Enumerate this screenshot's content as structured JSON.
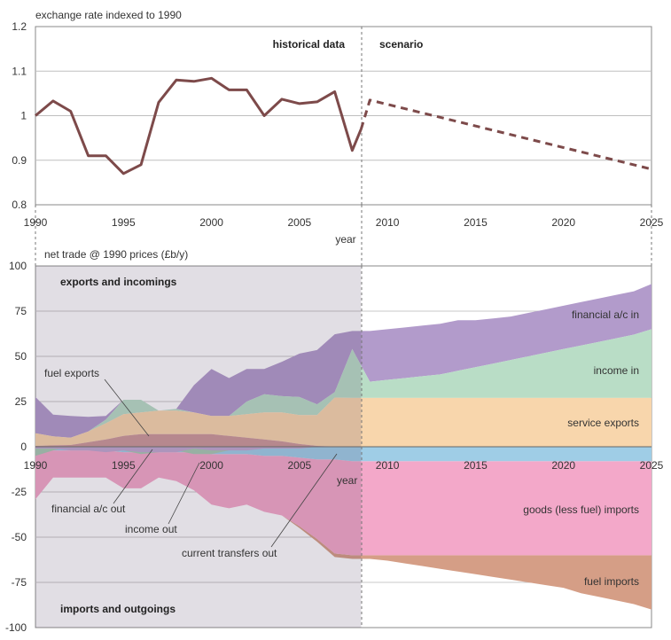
{
  "chart_data": [
    {
      "type": "line",
      "ylabel": "exchange rate indexed to 1990",
      "xlabel": "year",
      "xlim": [
        1990,
        2025
      ],
      "ylim": [
        0.8,
        1.2
      ],
      "yticks": [
        "1.2",
        "1.1",
        "1",
        "0.9",
        "0.8"
      ],
      "xticks": [
        "1990",
        "1995",
        "2000",
        "2005",
        "2010",
        "2015",
        "2020",
        "2025"
      ],
      "region_labels": {
        "historical": "historical data",
        "scenario": "scenario"
      },
      "grid": true,
      "colors": {
        "line": "#7d4a4a",
        "grid": "#bfbfbf",
        "divider": "#777777"
      },
      "series": [
        {
          "style": "solid",
          "x": [
            1990,
            1991,
            1992,
            1993,
            1994,
            1995,
            1996,
            1997,
            1998,
            1999,
            2000,
            2001,
            2002,
            2003,
            2004,
            2005,
            2006,
            2007,
            2008,
            2008.5
          ],
          "y": [
            1.0,
            1.033,
            1.01,
            0.91,
            0.91,
            0.87,
            0.89,
            1.03,
            1.08,
            1.077,
            1.084,
            1.058,
            1.058,
            1.0,
            1.037,
            1.027,
            1.031,
            1.054,
            0.922,
            0.97
          ]
        },
        {
          "style": "dashed",
          "x": [
            2008.5,
            2009,
            2025
          ],
          "y": [
            0.97,
            1.035,
            0.88
          ]
        }
      ]
    },
    {
      "type": "area",
      "ylabel": "net trade @ 1990 prices (£b/y)",
      "xlabel": "year",
      "xlim": [
        1990,
        2025
      ],
      "ylim": [
        -100,
        100
      ],
      "yticks": [
        "100",
        "75",
        "50",
        "25",
        "0",
        "-25",
        "-50",
        "-75",
        "-100"
      ],
      "xticks": [
        "1990",
        "1995",
        "2000",
        "2005",
        "2010",
        "2015",
        "2020",
        "2025"
      ],
      "section_labels": {
        "top": "exports and incomings",
        "bottom": "imports and outgoings"
      },
      "grid": true,
      "colors": {
        "financial_in": "#b29bcb",
        "income_in": "#b9ddc6",
        "service_exports": "#f8d6ac",
        "fuel_exports": "#cc9999",
        "current_transfers_out": "#9fcde6",
        "goods_imports": "#f3a8c9",
        "fuel_imports": "#d59e86",
        "income_out": "#a9c9b2",
        "financial_out": "#c0a8d0",
        "historical_tint": "rgba(70,50,90,0.16)"
      },
      "x": [
        1990,
        1991,
        1992,
        1993,
        1994,
        1995,
        1996,
        1997,
        1998,
        1999,
        2000,
        2001,
        2002,
        2003,
        2004,
        2005,
        2006,
        2007,
        2008,
        2009,
        2010,
        2011,
        2012,
        2013,
        2014,
        2015,
        2016,
        2017,
        2018,
        2019,
        2020,
        2021,
        2022,
        2023,
        2024,
        2025
      ],
      "series": [
        {
          "name": "fuel exports",
          "values": [
            0.5,
            0.8,
            1,
            2.5,
            4,
            6,
            7,
            7,
            7,
            7,
            7,
            6,
            5,
            4,
            3,
            1.5,
            0.5,
            0.2,
            0,
            0,
            0,
            0,
            0,
            0,
            0,
            0,
            0,
            0,
            0,
            0,
            0,
            0,
            0,
            0,
            0,
            0
          ]
        },
        {
          "name": "service exports",
          "values": [
            7,
            5,
            4,
            6,
            9,
            12,
            12,
            13,
            13,
            12,
            10,
            11,
            13,
            15,
            16,
            16,
            17,
            27,
            27,
            27,
            27,
            27,
            27,
            27,
            27,
            27,
            27,
            27,
            27,
            27,
            27,
            27,
            27,
            27,
            27,
            27
          ]
        },
        {
          "name": "income in",
          "values": [
            0,
            0,
            0,
            0,
            2,
            8,
            7,
            0,
            1,
            0,
            0,
            0,
            7,
            10,
            9,
            10,
            6,
            3,
            27,
            9,
            10,
            11,
            12,
            13,
            15,
            17,
            19,
            21,
            23,
            25,
            27,
            29,
            31,
            33,
            35,
            38
          ]
        },
        {
          "name": "financial a/c in",
          "values": [
            20,
            12,
            12,
            8,
            2,
            0,
            0,
            0,
            0,
            15,
            26,
            21,
            18,
            14,
            19,
            24,
            30,
            32,
            10,
            28,
            28,
            28,
            28,
            28,
            28,
            26,
            25,
            24,
            24,
            24,
            24,
            24,
            24,
            24,
            24,
            25
          ]
        },
        {
          "name": "current transfers out",
          "values": [
            2,
            2,
            2,
            2,
            2,
            3,
            3,
            3,
            3,
            3,
            4,
            4,
            4,
            5,
            5,
            6,
            7,
            7,
            8,
            8,
            8,
            8,
            8,
            8,
            8,
            8,
            8,
            8,
            8,
            8,
            8,
            8,
            8,
            8,
            8,
            8
          ]
        },
        {
          "name": "goods (less fuel) imports",
          "values": [
            27,
            15,
            15,
            15,
            15,
            20,
            20,
            14,
            16,
            21,
            28,
            30,
            28,
            31,
            33,
            38,
            44,
            52,
            52,
            52,
            52,
            52,
            52,
            52,
            52,
            52,
            52,
            52,
            52,
            52,
            52,
            52,
            52,
            52,
            52,
            52
          ]
        },
        {
          "name": "fuel imports",
          "values": [
            0,
            0,
            0,
            0,
            0,
            0,
            0,
            0,
            0,
            0,
            0,
            0,
            0,
            0,
            0,
            1,
            1.5,
            2,
            2,
            2,
            3,
            4.5,
            6,
            7.5,
            9,
            10.5,
            12,
            13.5,
            15,
            16.5,
            18,
            21,
            23,
            25,
            27,
            30
          ]
        },
        {
          "name": "income out",
          "values": [
            5,
            2,
            0,
            0,
            0,
            2,
            4,
            3,
            2,
            4,
            4,
            2,
            0,
            0,
            0,
            0,
            0,
            0,
            0,
            0,
            0,
            0,
            0,
            0,
            0,
            0,
            0,
            0,
            0,
            0,
            0,
            0,
            0,
            0,
            0,
            0
          ]
        },
        {
          "name": "financial a/c out",
          "values": [
            1,
            1,
            2,
            2,
            3,
            2,
            3,
            3,
            3,
            1,
            2,
            2,
            2,
            1,
            1,
            1,
            0,
            0,
            0,
            0,
            0,
            0,
            0,
            0,
            0,
            0,
            0,
            0,
            0,
            0,
            0,
            0,
            0,
            0,
            0,
            0
          ]
        }
      ],
      "annotations": {
        "financial_in": "financial a/c in",
        "income_in": "income in",
        "service_exports": "service exports",
        "fuel_exports": "fuel exports",
        "goods_imports": "goods (less fuel) imports",
        "fuel_imports": "fuel imports",
        "financial_out": "financial a/c out",
        "income_out": "income out",
        "current_transfers_out": "current transfers out",
        "year_label": "year"
      }
    }
  ]
}
